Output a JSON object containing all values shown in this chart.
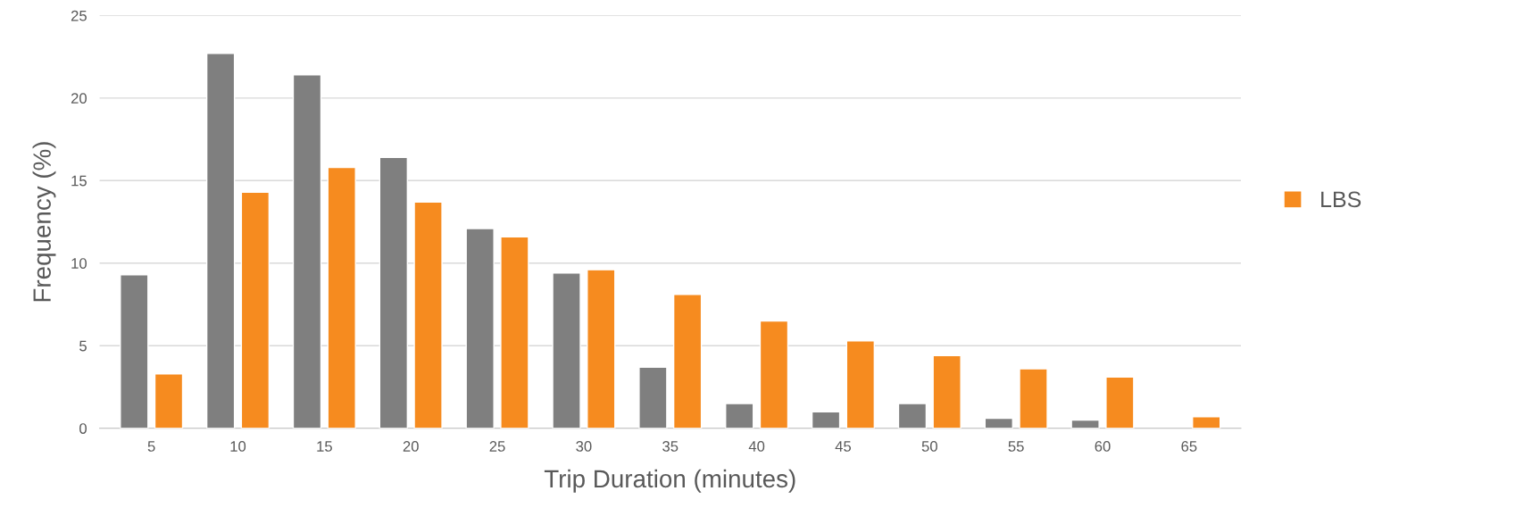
{
  "chart_data": {
    "type": "bar",
    "xlabel": "Trip Duration (minutes)",
    "ylabel": "Frequency (%)",
    "categories": [
      "5",
      "10",
      "15",
      "20",
      "25",
      "30",
      "35",
      "40",
      "45",
      "50",
      "55",
      "60",
      "65"
    ],
    "series": [
      {
        "color": "#7f7f7f",
        "values": [
          9.3,
          22.7,
          21.4,
          16.4,
          12.1,
          9.4,
          3.7,
          1.5,
          1.0,
          1.5,
          0.6,
          0.5,
          null
        ]
      },
      {
        "name": "LBS",
        "color": "#f68b1f",
        "values": [
          3.3,
          14.3,
          15.8,
          13.7,
          11.6,
          9.6,
          8.1,
          6.5,
          5.3,
          4.4,
          3.6,
          3.1,
          0.7
        ]
      }
    ],
    "ylim": [
      0,
      25
    ],
    "yticks": [
      0,
      5,
      10,
      15,
      20,
      25
    ],
    "grid": "y",
    "legend": "right"
  }
}
